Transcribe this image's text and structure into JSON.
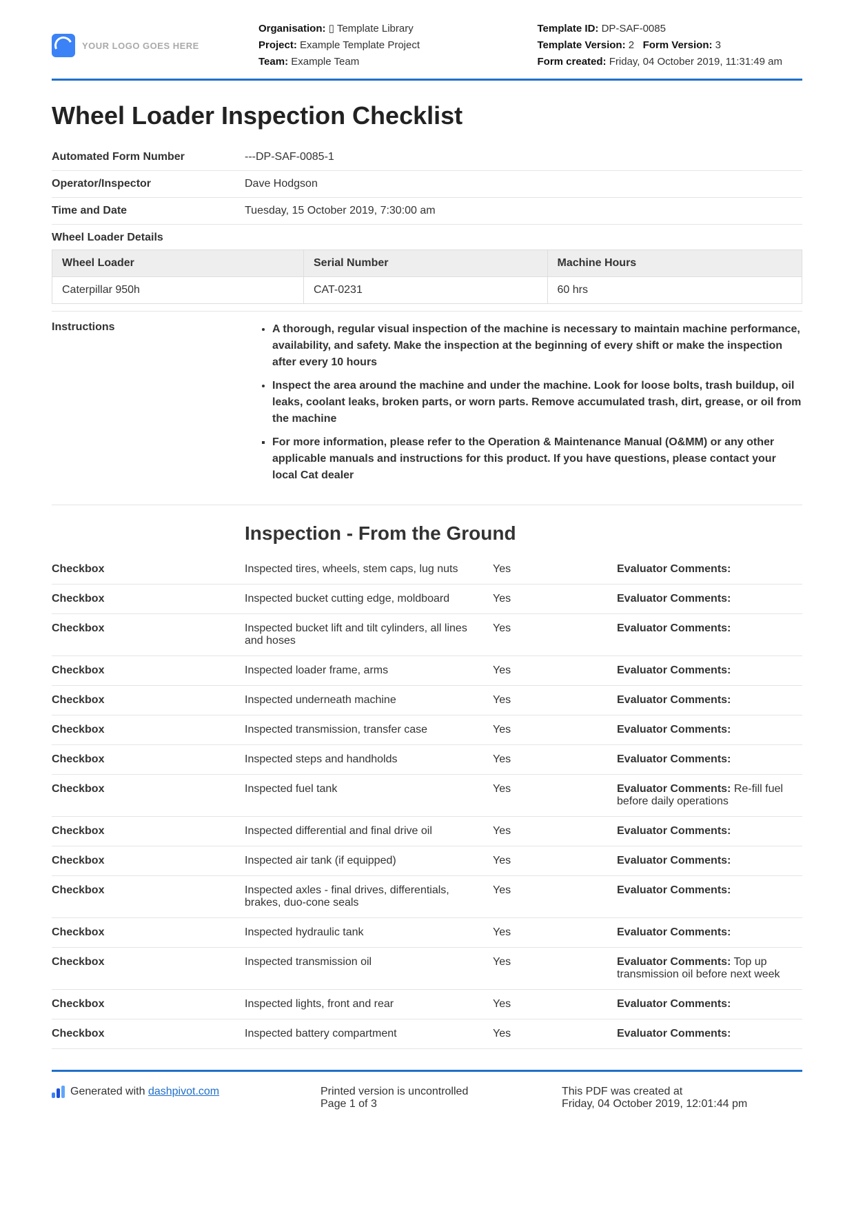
{
  "header": {
    "logo_text": "YOUR LOGO GOES HERE",
    "org_label": "Organisation:",
    "org_value": "▯ Template Library",
    "project_label": "Project:",
    "project_value": "Example Template Project",
    "team_label": "Team:",
    "team_value": "Example Team",
    "tmplid_label": "Template ID:",
    "tmplid_value": "DP-SAF-0085",
    "tmplver_label": "Template Version:",
    "tmplver_value": "2",
    "formver_label": "Form Version:",
    "formver_value": "3",
    "formcreated_label": "Form created:",
    "formcreated_value": "Friday, 04 October 2019, 11:31:49 am"
  },
  "title": "Wheel Loader Inspection Checklist",
  "info": {
    "form_number_label": "Automated Form Number",
    "form_number_value": "---DP-SAF-0085-1",
    "operator_label": "Operator/Inspector",
    "operator_value": "Dave Hodgson",
    "timedate_label": "Time and Date",
    "timedate_value": "Tuesday, 15 October 2019, 7:30:00 am",
    "details_label": "Wheel Loader Details"
  },
  "details_table": {
    "headers": [
      "Wheel Loader",
      "Serial Number",
      "Machine Hours"
    ],
    "row": [
      "Caterpillar 950h",
      "CAT-0231",
      "60 hrs"
    ]
  },
  "instructions_label": "Instructions",
  "instructions": [
    "A thorough, regular visual inspection of the machine is necessary to maintain machine performance, availability, and safety. Make the inspection at the beginning of every shift or make the inspection after every 10 hours",
    "Inspect the area around the machine and under the machine. Look for loose bolts, trash buildup, oil leaks, coolant leaks, broken parts, or worn parts. Remove accumulated trash, dirt, grease, or oil from the machine",
    "For more information, please refer to the Operation & Maintenance Manual (O&MM) or any other applicable manuals and instructions for this product. If you have questions, please contact your local Cat dealer"
  ],
  "section_heading": "Inspection - From the Ground",
  "checkbox_label": "Checkbox",
  "eval_label": "Evaluator Comments:",
  "checks": [
    {
      "desc": "Inspected tires, wheels, stem caps, lug nuts",
      "ans": "Yes",
      "comment": ""
    },
    {
      "desc": "Inspected bucket cutting edge, moldboard",
      "ans": "Yes",
      "comment": ""
    },
    {
      "desc": "Inspected bucket lift and tilt cylinders, all lines and hoses",
      "ans": "Yes",
      "comment": ""
    },
    {
      "desc": "Inspected loader frame, arms",
      "ans": "Yes",
      "comment": ""
    },
    {
      "desc": "Inspected underneath machine",
      "ans": "Yes",
      "comment": ""
    },
    {
      "desc": "Inspected transmission, transfer case",
      "ans": "Yes",
      "comment": ""
    },
    {
      "desc": "Inspected steps and handholds",
      "ans": "Yes",
      "comment": ""
    },
    {
      "desc": "Inspected fuel tank",
      "ans": "Yes",
      "comment": "Re-fill fuel before daily operations"
    },
    {
      "desc": "Inspected differential and final drive oil",
      "ans": "Yes",
      "comment": ""
    },
    {
      "desc": "Inspected air tank (if equipped)",
      "ans": "Yes",
      "comment": ""
    },
    {
      "desc": "Inspected axles - final drives, differentials, brakes, duo-cone seals",
      "ans": "Yes",
      "comment": ""
    },
    {
      "desc": "Inspected hydraulic tank",
      "ans": "Yes",
      "comment": ""
    },
    {
      "desc": "Inspected transmission oil",
      "ans": "Yes",
      "comment": "Top up transmission oil before next week"
    },
    {
      "desc": "Inspected lights, front and rear",
      "ans": "Yes",
      "comment": ""
    },
    {
      "desc": "Inspected battery compartment",
      "ans": "Yes",
      "comment": ""
    }
  ],
  "footer": {
    "generated_prefix": "Generated with ",
    "generated_link": "dashpivot.com",
    "uncontrolled": "Printed version is uncontrolled",
    "page": "Page 1 of 3",
    "created_label": "This PDF was created at",
    "created_value": "Friday, 04 October 2019, 12:01:44 pm"
  }
}
